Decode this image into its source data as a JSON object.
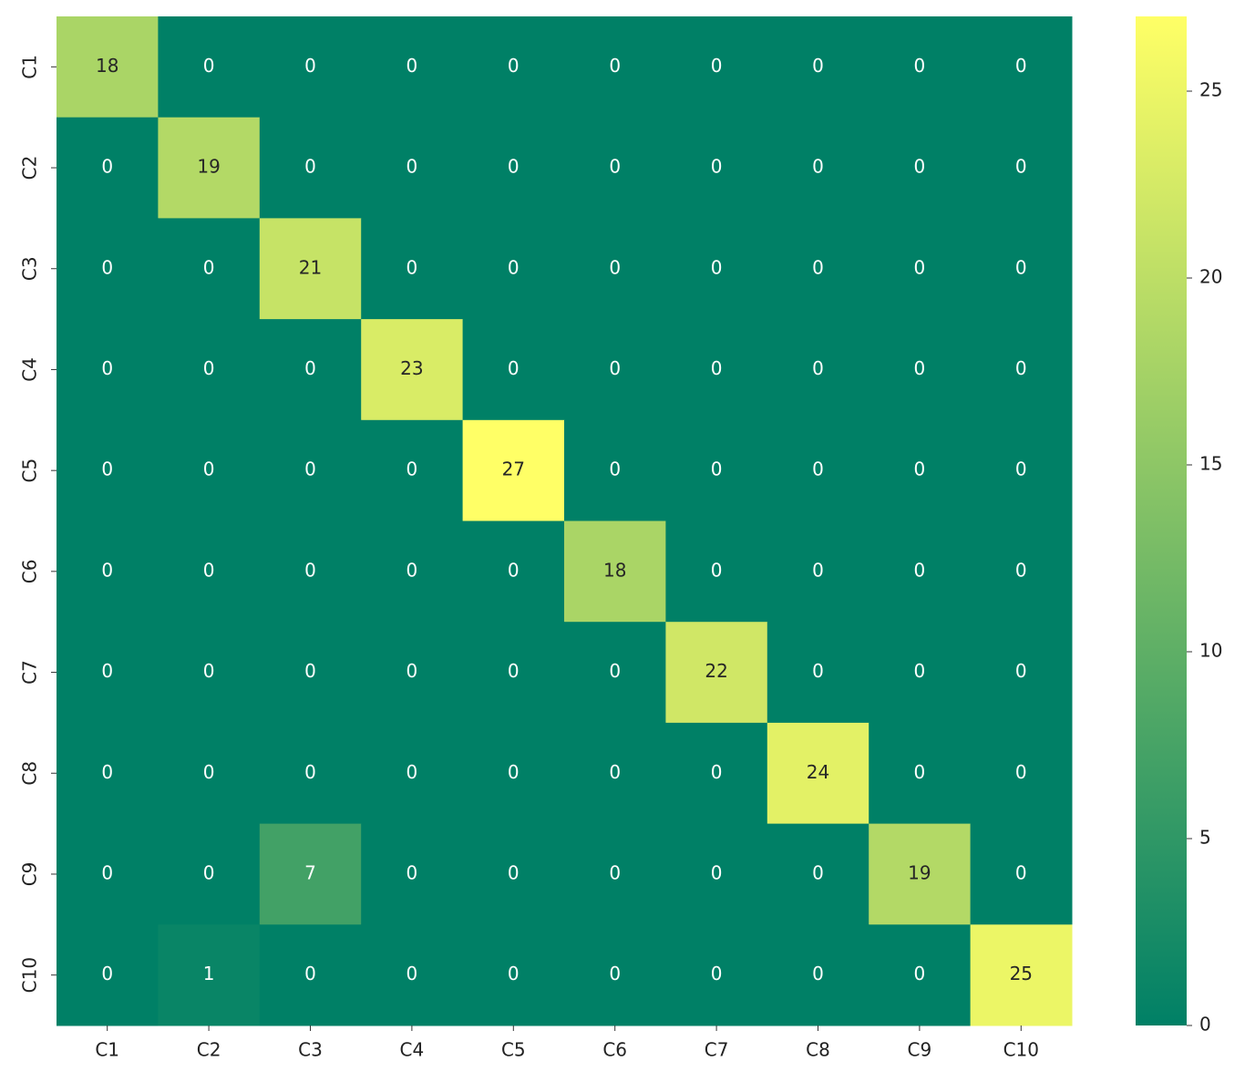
{
  "chart_data": {
    "type": "heatmap",
    "x_categories": [
      "C1",
      "C2",
      "C3",
      "C4",
      "C5",
      "C6",
      "C7",
      "C8",
      "C9",
      "C10"
    ],
    "y_categories": [
      "C1",
      "C2",
      "C3",
      "C4",
      "C5",
      "C6",
      "C7",
      "C8",
      "C9",
      "C10"
    ],
    "values": [
      [
        18,
        0,
        0,
        0,
        0,
        0,
        0,
        0,
        0,
        0
      ],
      [
        0,
        19,
        0,
        0,
        0,
        0,
        0,
        0,
        0,
        0
      ],
      [
        0,
        0,
        21,
        0,
        0,
        0,
        0,
        0,
        0,
        0
      ],
      [
        0,
        0,
        0,
        23,
        0,
        0,
        0,
        0,
        0,
        0
      ],
      [
        0,
        0,
        0,
        0,
        27,
        0,
        0,
        0,
        0,
        0
      ],
      [
        0,
        0,
        0,
        0,
        0,
        18,
        0,
        0,
        0,
        0
      ],
      [
        0,
        0,
        0,
        0,
        0,
        0,
        22,
        0,
        0,
        0
      ],
      [
        0,
        0,
        0,
        0,
        0,
        0,
        0,
        24,
        0,
        0
      ],
      [
        0,
        0,
        7,
        0,
        0,
        0,
        0,
        0,
        19,
        0
      ],
      [
        0,
        1,
        0,
        0,
        0,
        0,
        0,
        0,
        0,
        25
      ]
    ],
    "colors": [
      "#008066",
      "#ffff66"
    ],
    "zlim": [
      0,
      27
    ],
    "colorbar_ticks": [
      0,
      5,
      10,
      15,
      20,
      25
    ]
  }
}
